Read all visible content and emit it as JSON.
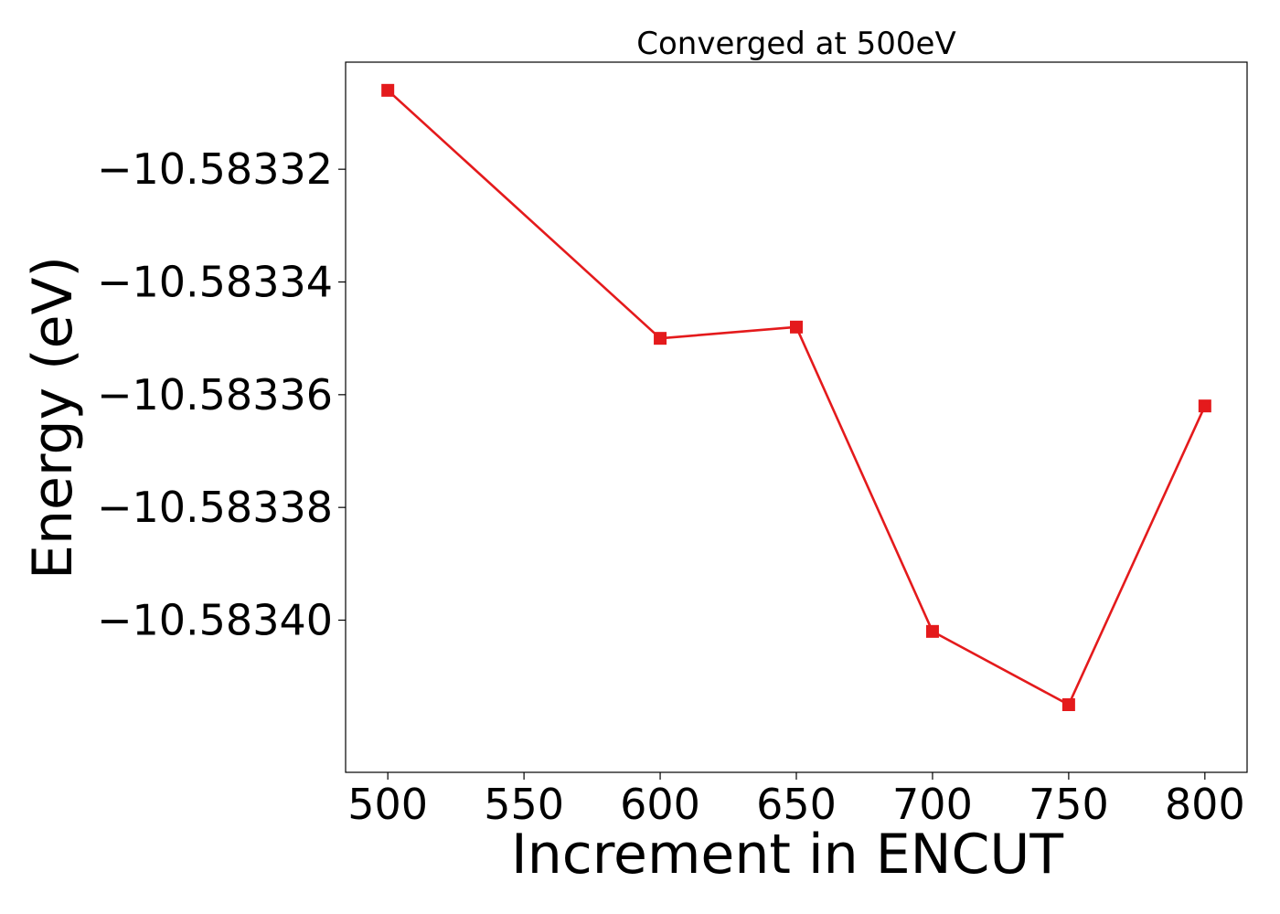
{
  "chart_data": {
    "type": "line",
    "title": "Converged at 500eV",
    "xlabel": "Increment in ENCUT",
    "ylabel": "Energy (eV)",
    "x": [
      500,
      600,
      650,
      700,
      750,
      800
    ],
    "series": [
      {
        "values": [
          -10.583306,
          -10.58335,
          -10.583348,
          -10.583402,
          -10.583415,
          -10.583362
        ],
        "color": "#e41a1c",
        "marker": "square"
      }
    ],
    "xticks": [
      500,
      550,
      600,
      650,
      700,
      750,
      800
    ],
    "xtick_labels": [
      "500",
      "550",
      "600",
      "650",
      "700",
      "750",
      "800"
    ],
    "yticks": [
      -10.58332,
      -10.58334,
      -10.58336,
      -10.58338,
      -10.5834
    ],
    "ytick_labels": [
      "−10.58332",
      "−10.58334",
      "−10.58336",
      "−10.58338",
      "−10.58340"
    ],
    "xlim": [
      484.5,
      815.5
    ],
    "ylim": [
      -10.583427,
      -10.583301
    ],
    "grid": false
  }
}
